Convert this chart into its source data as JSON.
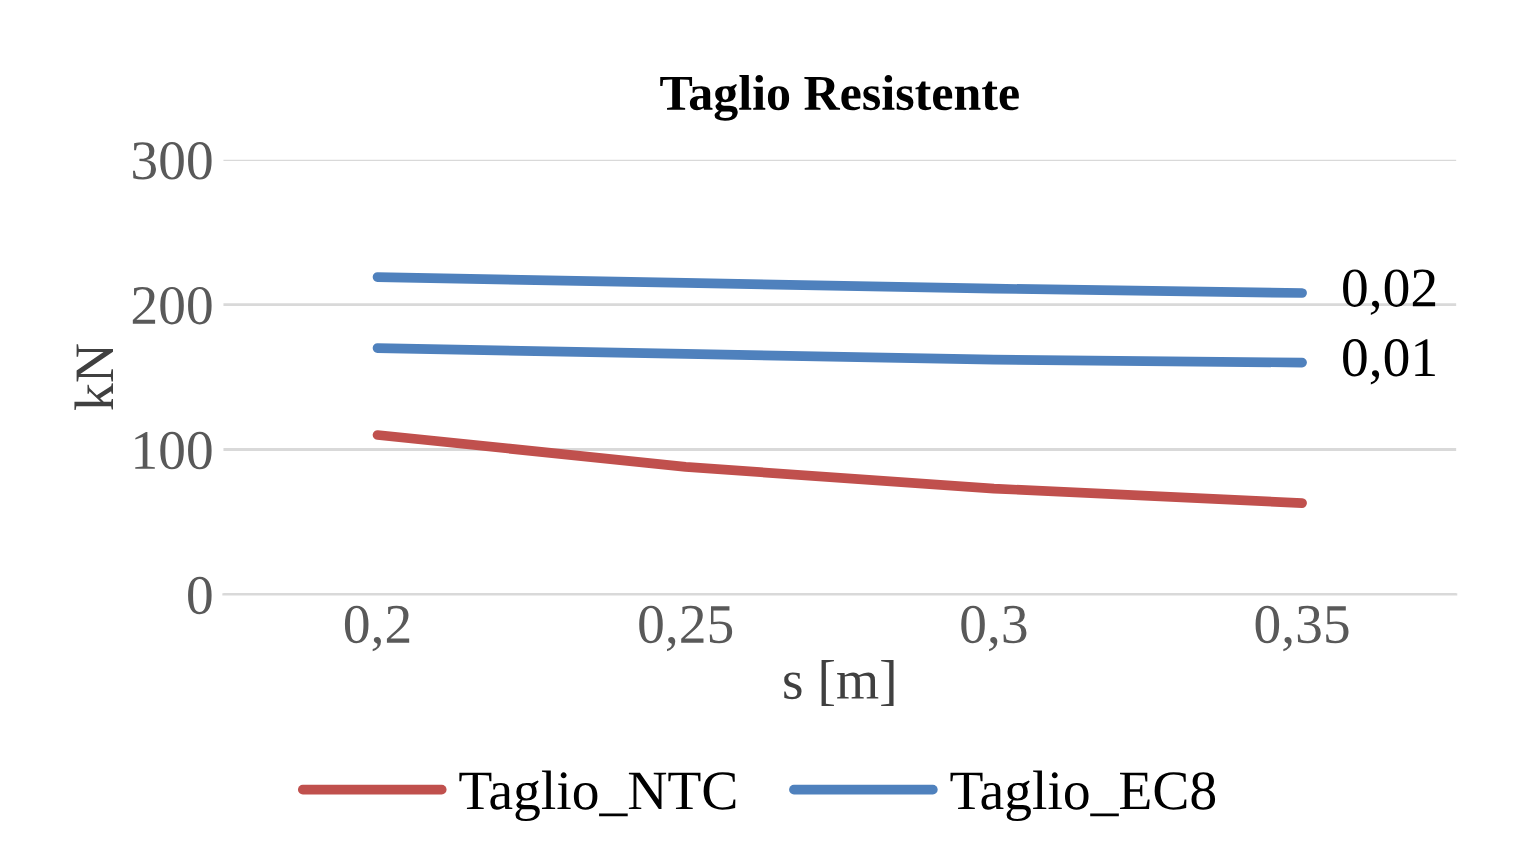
{
  "chart_data": {
    "type": "line",
    "title": "Taglio Resistente",
    "xlabel": "s [m]",
    "ylabel": "kN",
    "categories": [
      "0,2",
      "0,25",
      "0,3",
      "0,35"
    ],
    "series": [
      {
        "name": "Taglio_NTC",
        "color": "#c0504d",
        "values": [
          110,
          88,
          73,
          63
        ]
      },
      {
        "name": "Taglio_EC8",
        "color": "#4f81bd",
        "values": [
          219,
          215,
          211,
          208
        ]
      },
      {
        "color": "#4f81bd",
        "values": [
          170,
          166,
          162,
          160
        ]
      }
    ],
    "annotations": [
      {
        "text": "0,02",
        "x": "0,35",
        "y": 208
      },
      {
        "text": "0,01",
        "x": "0,35",
        "y": 160
      }
    ],
    "ylim": [
      0,
      300
    ],
    "yticks": [
      0,
      100,
      200,
      300
    ],
    "grid": "y",
    "legend": "bottom",
    "marker": "none",
    "line_style": "solid"
  }
}
